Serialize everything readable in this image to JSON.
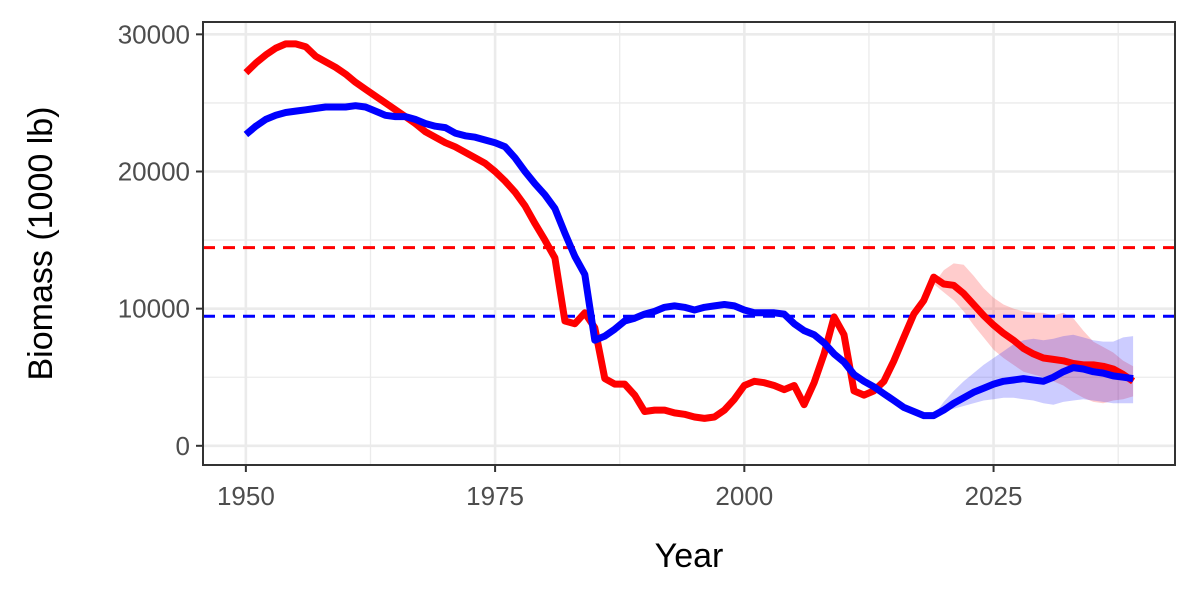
{
  "chart_data": {
    "type": "line",
    "title": "",
    "xlabel": "Year",
    "ylabel": "Biomass (1000 lb)",
    "xlim": [
      1945.7,
      2043.2
    ],
    "ylim": [
      -1400,
      30900
    ],
    "x_ticks": [
      1950,
      1975,
      2000,
      2025
    ],
    "x_minor_ticks": [
      1962.5,
      1987.5,
      2012.5,
      2037.5
    ],
    "y_ticks": [
      0,
      10000,
      20000,
      30000
    ],
    "y_minor_ticks": [
      5000,
      15000,
      25000
    ],
    "grid": true,
    "legend": "none",
    "colors": {
      "red": "#ff0000",
      "blue": "#0000ff",
      "red_band": "#ff0000",
      "blue_band": "#0000ff",
      "grid": "#ebebeb",
      "panel_border": "#333333"
    },
    "reference_lines": [
      {
        "color": "#ff0000",
        "y": 14450
      },
      {
        "color": "#0000ff",
        "y": 9450
      }
    ],
    "series": [
      {
        "color": "#ff0000",
        "x": [
          1950,
          1951,
          1952,
          1953,
          1954,
          1955,
          1956,
          1957,
          1958,
          1959,
          1960,
          1961,
          1962,
          1963,
          1964,
          1965,
          1966,
          1967,
          1968,
          1969,
          1970,
          1971,
          1972,
          1973,
          1974,
          1975,
          1976,
          1977,
          1978,
          1979,
          1980,
          1981,
          1982,
          1983,
          1984,
          1985,
          1986,
          1987,
          1988,
          1989,
          1990,
          1991,
          1992,
          1993,
          1994,
          1995,
          1996,
          1997,
          1998,
          1999,
          2000,
          2001,
          2002,
          2003,
          2004,
          2005,
          2006,
          2007,
          2008,
          2009,
          2010,
          2011,
          2012,
          2013,
          2014,
          2015,
          2016,
          2017,
          2018,
          2019,
          2020,
          2021,
          2022,
          2023,
          2024,
          2025,
          2026,
          2027,
          2028,
          2029,
          2030,
          2031,
          2032,
          2033,
          2034,
          2035,
          2036,
          2037,
          2038,
          2039
        ],
        "values": [
          27200,
          27900,
          28500,
          29000,
          29300,
          29300,
          29100,
          28400,
          28000,
          27600,
          27100,
          26500,
          26000,
          25500,
          25000,
          24500,
          24000,
          23500,
          22900,
          22500,
          22100,
          21800,
          21400,
          21000,
          20600,
          20000,
          19300,
          18500,
          17500,
          16200,
          15000,
          13700,
          9100,
          8900,
          9700,
          8600,
          4900,
          4500,
          4500,
          3700,
          2500,
          2600,
          2600,
          2400,
          2300,
          2100,
          2000,
          2100,
          2600,
          3400,
          4400,
          4700,
          4600,
          4400,
          4100,
          4400,
          3000,
          4600,
          6700,
          9400,
          8100,
          4000,
          3700,
          4000,
          4700,
          6200,
          7900,
          9600,
          10600,
          12300,
          11800,
          11700,
          11100,
          10300,
          9500,
          8800,
          8200,
          7700,
          7100,
          6700,
          6400,
          6300,
          6200,
          6000,
          5900,
          5900,
          5800,
          5600,
          5200,
          4700
        ]
      },
      {
        "color": "#0000ff",
        "x": [
          1950,
          1951,
          1952,
          1953,
          1954,
          1955,
          1956,
          1957,
          1958,
          1959,
          1960,
          1961,
          1962,
          1963,
          1964,
          1965,
          1966,
          1967,
          1968,
          1969,
          1970,
          1971,
          1972,
          1973,
          1974,
          1975,
          1976,
          1977,
          1978,
          1979,
          1980,
          1981,
          1982,
          1983,
          1984,
          1985,
          1986,
          1987,
          1988,
          1989,
          1990,
          1991,
          1992,
          1993,
          1994,
          1995,
          1996,
          1997,
          1998,
          1999,
          2000,
          2001,
          2002,
          2003,
          2004,
          2005,
          2006,
          2007,
          2008,
          2009,
          2010,
          2011,
          2012,
          2013,
          2014,
          2015,
          2016,
          2017,
          2018,
          2019,
          2020,
          2021,
          2022,
          2023,
          2024,
          2025,
          2026,
          2027,
          2028,
          2029,
          2030,
          2031,
          2032,
          2033,
          2034,
          2035,
          2036,
          2037,
          2038,
          2039
        ],
        "values": [
          22700,
          23300,
          23800,
          24100,
          24300,
          24400,
          24500,
          24600,
          24700,
          24700,
          24700,
          24800,
          24700,
          24400,
          24100,
          24000,
          24000,
          23800,
          23500,
          23300,
          23200,
          22800,
          22600,
          22500,
          22300,
          22100,
          21800,
          21000,
          20000,
          19100,
          18300,
          17300,
          15500,
          13800,
          12500,
          7700,
          8000,
          8500,
          9100,
          9300,
          9600,
          9800,
          10100,
          10200,
          10100,
          9900,
          10100,
          10200,
          10300,
          10200,
          9900,
          9700,
          9700,
          9700,
          9600,
          8900,
          8400,
          8100,
          7500,
          6700,
          6100,
          5200,
          4700,
          4300,
          3800,
          3300,
          2800,
          2500,
          2200,
          2200,
          2600,
          3100,
          3500,
          3900,
          4200,
          4500,
          4700,
          4800,
          4900,
          4800,
          4700,
          5000,
          5400,
          5700,
          5600,
          5400,
          5300,
          5100,
          5000,
          4900
        ]
      }
    ],
    "bands": [
      {
        "color": "#ff0000",
        "x": [
          2019,
          2020,
          2021,
          2022,
          2023,
          2024,
          2025,
          2026,
          2027,
          2028,
          2029,
          2030,
          2031,
          2032,
          2033,
          2034,
          2035,
          2036,
          2037,
          2038,
          2039
        ],
        "upper": [
          11800,
          12800,
          13300,
          13200,
          12400,
          11500,
          10800,
          10300,
          10000,
          9800,
          9700,
          9700,
          9500,
          9700,
          9300,
          8400,
          7600,
          7200,
          6800,
          6200,
          5800
        ],
        "lower": [
          11800,
          11200,
          10600,
          9800,
          8800,
          7900,
          7000,
          6400,
          5900,
          5400,
          5200,
          5000,
          4700,
          4400,
          3900,
          3500,
          3200,
          3100,
          3300,
          3400,
          3600
        ]
      },
      {
        "color": "#0000ff",
        "x": [
          2019,
          2020,
          2021,
          2022,
          2023,
          2024,
          2025,
          2026,
          2027,
          2028,
          2029,
          2030,
          2031,
          2032,
          2033,
          2034,
          2035,
          2036,
          2037,
          2038,
          2039
        ],
        "upper": [
          2200,
          3200,
          4000,
          4700,
          5300,
          5900,
          6400,
          6900,
          7400,
          7700,
          7800,
          7700,
          7800,
          8000,
          8100,
          7900,
          7700,
          7600,
          7600,
          7900,
          8000
        ],
        "lower": [
          2200,
          2500,
          2700,
          2900,
          3100,
          3300,
          3400,
          3500,
          3500,
          3400,
          3300,
          3100,
          3000,
          3200,
          3300,
          3400,
          3300,
          3200,
          3100,
          3100,
          3100
        ]
      }
    ]
  }
}
